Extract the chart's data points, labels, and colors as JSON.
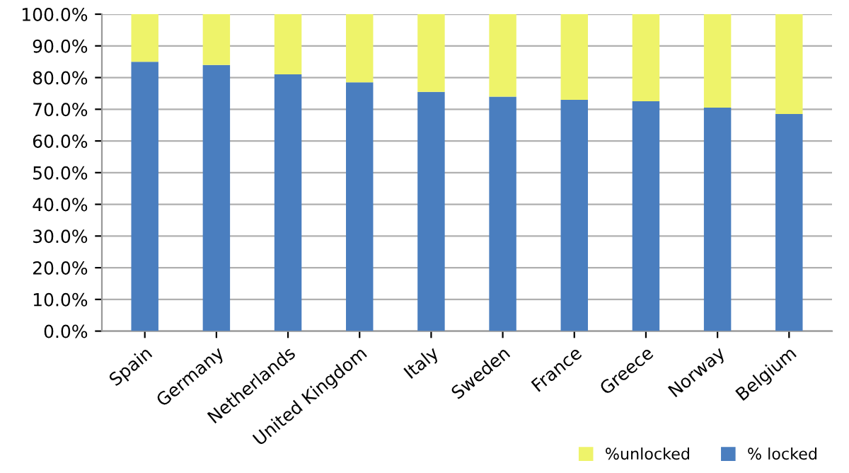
{
  "chart_data": {
    "type": "bar",
    "stacked": true,
    "categories": [
      "Spain",
      "Germany",
      "Netherlands",
      "United Kingdom",
      "Italy",
      "Sweden",
      "France",
      "Greece",
      "Norway",
      "Belgium"
    ],
    "series": [
      {
        "name": "% locked",
        "color": "#4a7ebf",
        "values": [
          85,
          84,
          81,
          78.5,
          75.5,
          74,
          73,
          72.5,
          70.5,
          68.5
        ]
      },
      {
        "name": "%unlocked",
        "color": "#eef36a",
        "values": [
          15,
          16,
          19,
          21.5,
          24.5,
          26,
          27,
          27.5,
          29.5,
          31.5
        ]
      }
    ],
    "ylim": [
      0,
      100
    ],
    "yticks": [
      {
        "value": 0,
        "label": "0.0%"
      },
      {
        "value": 10,
        "label": "10.0%"
      },
      {
        "value": 20,
        "label": "20.0%"
      },
      {
        "value": 30,
        "label": "30.0%"
      },
      {
        "value": 40,
        "label": "40.0%"
      },
      {
        "value": 50,
        "label": "50.0%"
      },
      {
        "value": 60,
        "label": "60.0%"
      },
      {
        "value": 70,
        "label": "70.0%"
      },
      {
        "value": 80,
        "label": "80.0%"
      },
      {
        "value": 90,
        "label": "90.0%"
      },
      {
        "value": 100,
        "label": "100.0%"
      }
    ],
    "grid": "y",
    "legend": "bottom right"
  }
}
